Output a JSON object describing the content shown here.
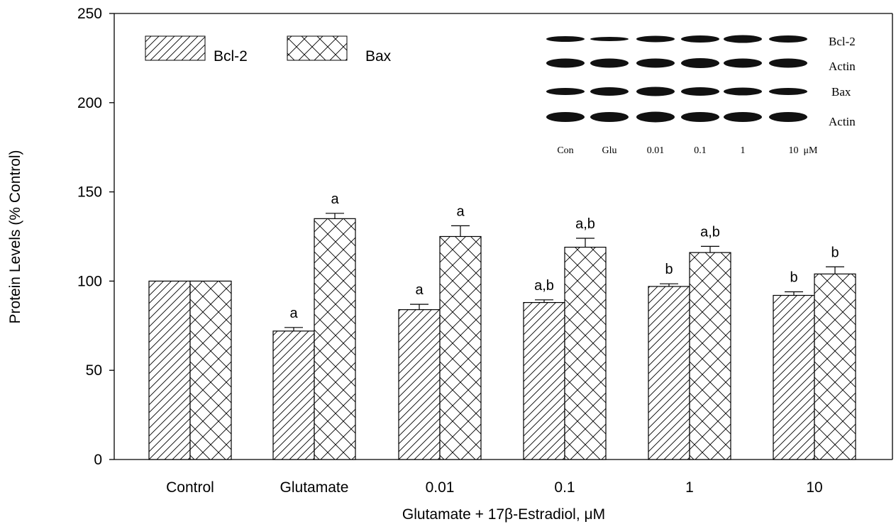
{
  "chart_data": {
    "type": "bar",
    "categories": [
      "Control",
      "Glutamate",
      "0.01",
      "0.1",
      "1",
      "10"
    ],
    "series": [
      {
        "name": "Bcl-2",
        "pattern": "diagonal-hatch",
        "values": [
          100,
          72,
          84,
          88,
          97,
          92
        ],
        "errors": [
          0,
          2,
          3,
          1.5,
          1.5,
          2
        ],
        "annotations": [
          "",
          "a",
          "a",
          "a,b",
          "b",
          "b"
        ]
      },
      {
        "name": "Bax",
        "pattern": "cross-hatch",
        "values": [
          100,
          135,
          125,
          119,
          116,
          104
        ],
        "errors": [
          0,
          3,
          6,
          5,
          3.5,
          4
        ],
        "annotations": [
          "",
          "a",
          "a",
          "a,b",
          "a,b",
          "b"
        ]
      }
    ],
    "xlabel": "Glutamate + 17β-Estradiol, μM",
    "ylabel": "Protein Levels (% Control)",
    "ylim": [
      0,
      250
    ],
    "yticks": [
      0,
      50,
      100,
      150,
      200,
      250
    ],
    "grid": false,
    "legend_position": "top-left",
    "inset_blot": {
      "row_labels": [
        "Bcl-2",
        "Actin",
        "Bax",
        "Actin"
      ],
      "lane_labels": [
        "Con",
        "Glu",
        "0.01",
        "0.1",
        "1",
        "10  μM"
      ]
    }
  }
}
